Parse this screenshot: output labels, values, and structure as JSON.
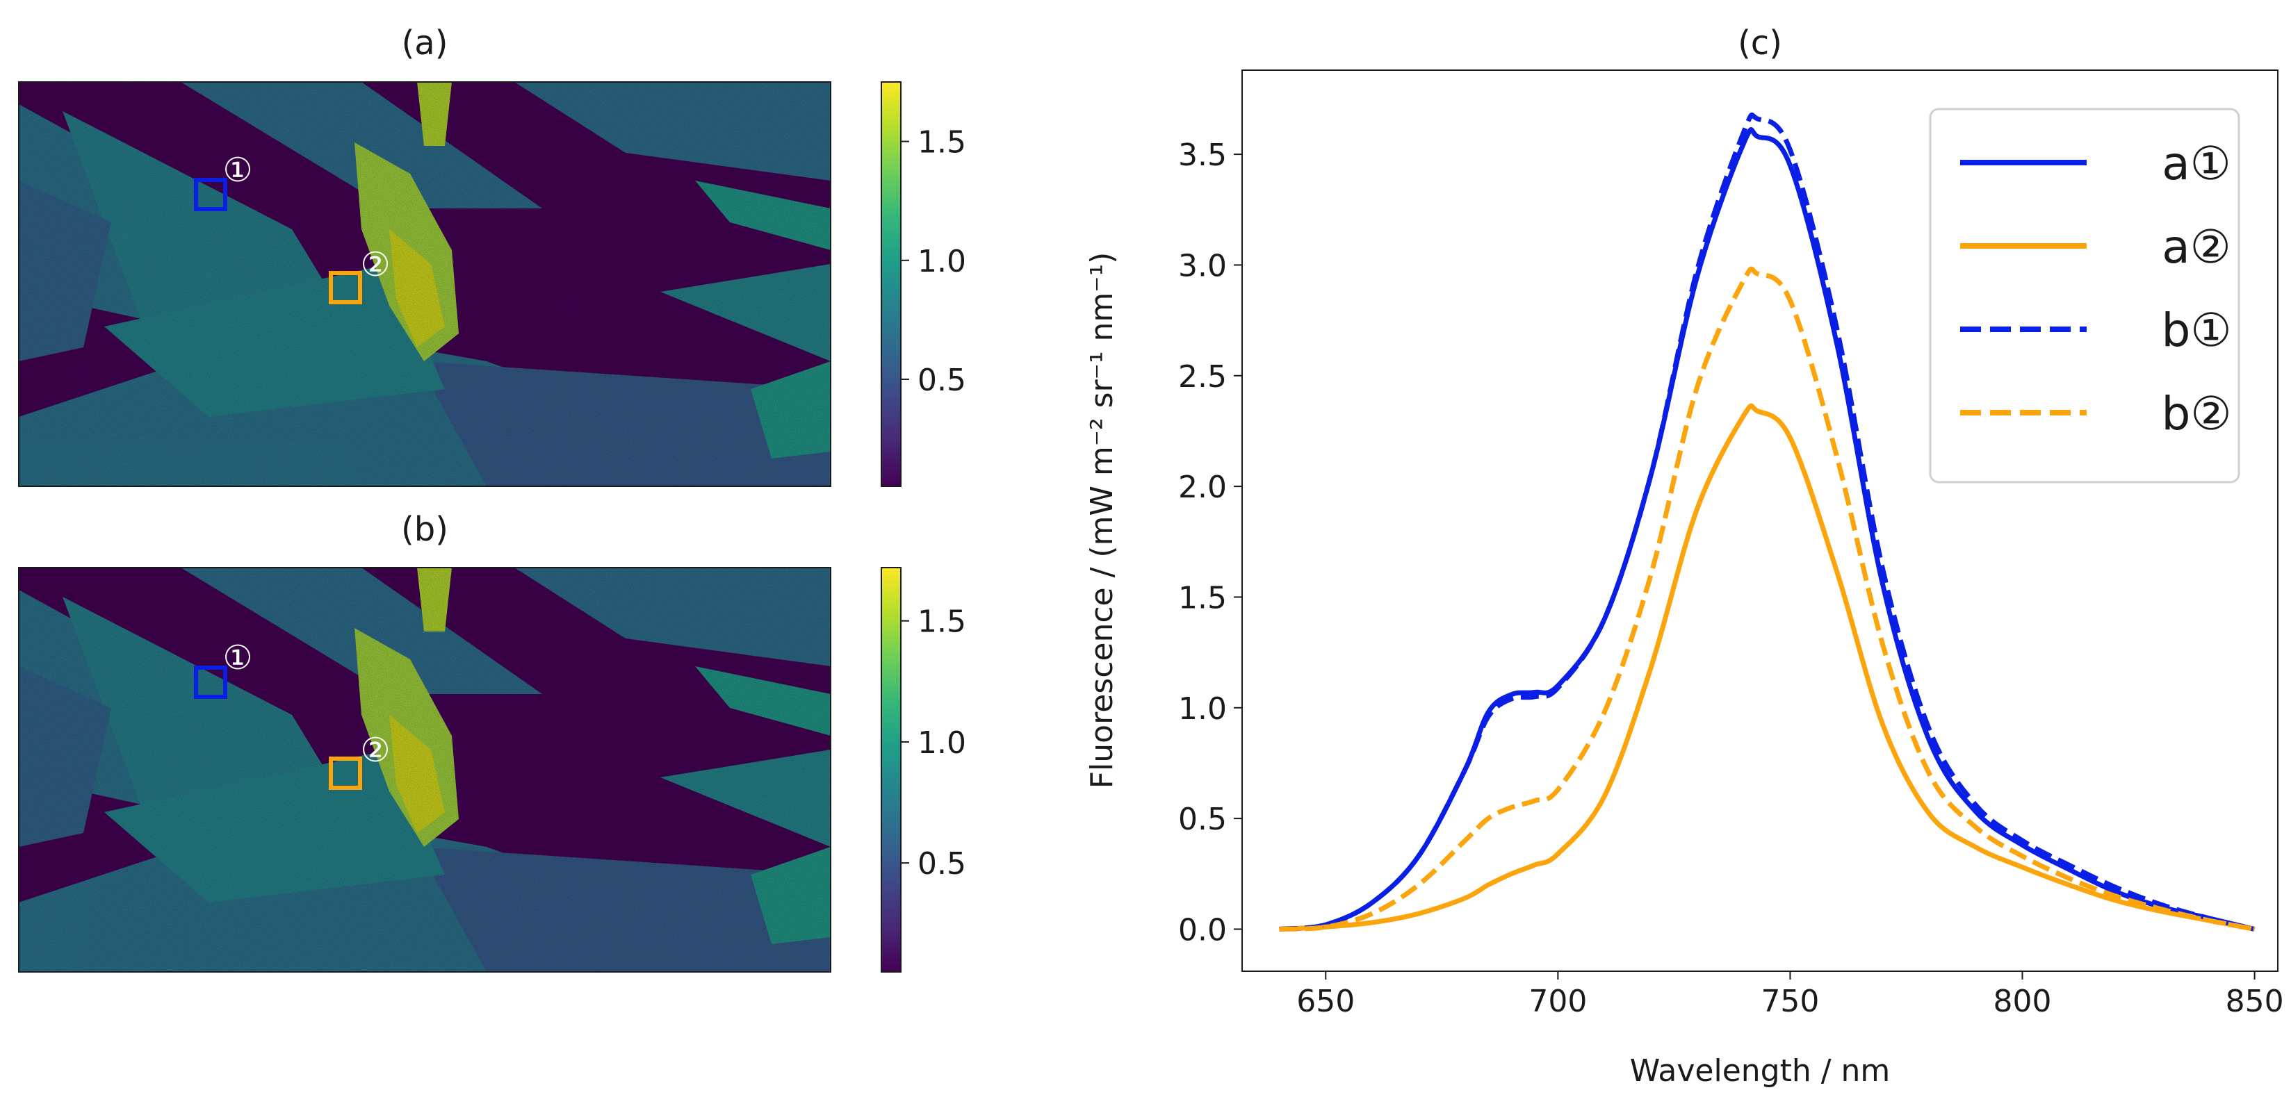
{
  "colors": {
    "blue": "#0a1fe6",
    "orange": "#fba40c",
    "axis": "#1a1a1a",
    "viridis": [
      "#440154",
      "#482878",
      "#3e4989",
      "#31688e",
      "#26828e",
      "#1f9e89",
      "#35b779",
      "#6ece58",
      "#b5de2b",
      "#fde725"
    ]
  },
  "chart_data": [
    {
      "type": "heatmap",
      "title": "(a)",
      "colorbar": {
        "ticks": [
          0.5,
          1.0,
          1.5
        ],
        "tick_labels": [
          "0.5",
          "1.0",
          "1.5"
        ],
        "range": [
          0.05,
          1.75
        ]
      },
      "markers": [
        {
          "label": "①",
          "color": "#0a1fe6"
        },
        {
          "label": "②",
          "color": "#fba40c"
        }
      ]
    },
    {
      "type": "heatmap",
      "title": "(b)",
      "colorbar": {
        "ticks": [
          0.5,
          1.0,
          1.5
        ],
        "tick_labels": [
          "0.5",
          "1.0",
          "1.5"
        ],
        "range": [
          0.05,
          1.72
        ]
      },
      "markers": [
        {
          "label": "①",
          "color": "#0a1fe6"
        },
        {
          "label": "②",
          "color": "#fba40c"
        }
      ]
    },
    {
      "type": "line",
      "title": "(c)",
      "xlabel": "Wavelength / nm",
      "ylabel": "Fluorescence / (mW m⁻² sr⁻¹ nm⁻¹)",
      "xlim": [
        632,
        855
      ],
      "ylim": [
        -0.19,
        3.88
      ],
      "xticks": [
        650,
        700,
        750,
        800,
        850
      ],
      "xtick_labels": [
        "650",
        "700",
        "750",
        "800",
        "850"
      ],
      "yticks": [
        0.0,
        0.5,
        1.0,
        1.5,
        2.0,
        2.5,
        3.0,
        3.5
      ],
      "ytick_labels": [
        "0.0",
        "0.5",
        "1.0",
        "1.5",
        "2.0",
        "2.5",
        "3.0",
        "3.5"
      ],
      "legend_position": "top-right",
      "x": [
        640,
        650,
        660,
        670,
        680,
        685,
        690,
        695,
        700,
        710,
        720,
        730,
        740,
        743,
        750,
        760,
        770,
        780,
        790,
        800,
        810,
        820,
        830,
        840,
        850
      ],
      "series": [
        {
          "name": "a①",
          "style": "solid",
          "color": "#0a1fe6",
          "values": [
            0.0,
            0.02,
            0.12,
            0.33,
            0.72,
            0.98,
            1.06,
            1.07,
            1.1,
            1.4,
            2.05,
            2.95,
            3.55,
            3.58,
            3.45,
            2.65,
            1.55,
            0.85,
            0.53,
            0.38,
            0.27,
            0.17,
            0.1,
            0.05,
            0.0
          ]
        },
        {
          "name": "a②",
          "style": "solid",
          "color": "#fba40c",
          "values": [
            0.0,
            0.01,
            0.03,
            0.07,
            0.14,
            0.2,
            0.25,
            0.29,
            0.34,
            0.6,
            1.18,
            1.9,
            2.32,
            2.34,
            2.22,
            1.62,
            0.92,
            0.52,
            0.37,
            0.28,
            0.2,
            0.13,
            0.08,
            0.04,
            0.0
          ]
        },
        {
          "name": "b①",
          "style": "dashed",
          "color": "#0a1fe6",
          "values": [
            0.0,
            0.02,
            0.12,
            0.33,
            0.72,
            0.96,
            1.04,
            1.05,
            1.09,
            1.4,
            2.05,
            2.98,
            3.6,
            3.66,
            3.52,
            2.72,
            1.62,
            0.9,
            0.56,
            0.4,
            0.29,
            0.19,
            0.11,
            0.05,
            0.0
          ]
        },
        {
          "name": "b②",
          "style": "dashed",
          "color": "#fba40c",
          "values": [
            0.0,
            0.01,
            0.07,
            0.2,
            0.4,
            0.5,
            0.55,
            0.58,
            0.63,
            0.98,
            1.6,
            2.45,
            2.93,
            2.96,
            2.84,
            2.14,
            1.28,
            0.7,
            0.46,
            0.33,
            0.23,
            0.15,
            0.09,
            0.04,
            0.0
          ]
        }
      ]
    }
  ]
}
